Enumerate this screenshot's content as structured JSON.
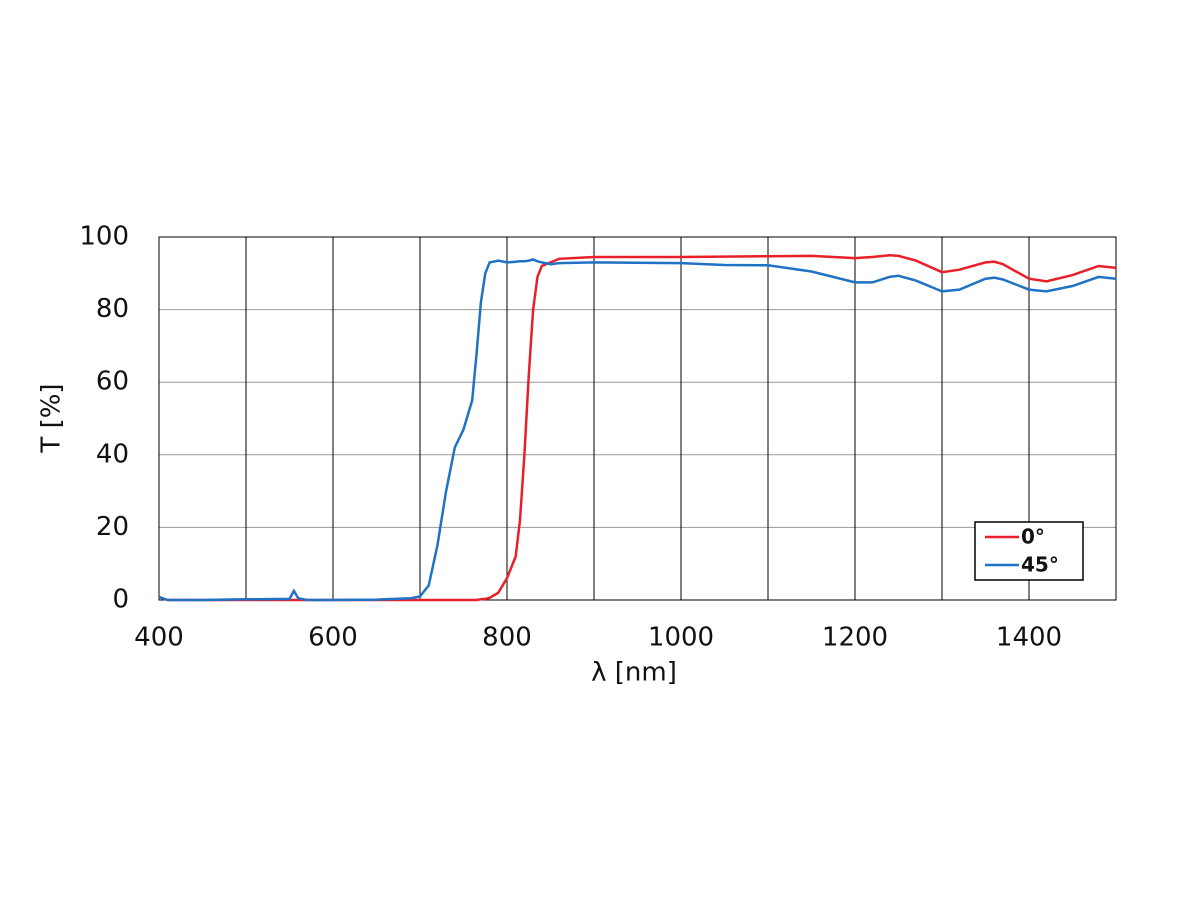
{
  "chart_data": {
    "type": "line",
    "xlabel": "λ [nm]",
    "ylabel": "T [%]",
    "x": [
      400,
      410,
      450,
      500,
      550,
      555,
      560,
      570,
      600,
      650,
      690,
      700,
      710,
      720,
      730,
      740,
      750,
      760,
      765,
      770,
      775,
      780,
      790,
      800,
      810,
      815,
      820,
      825,
      830,
      835,
      840,
      850,
      860,
      900,
      1000,
      1050,
      1100,
      1150,
      1200,
      1220,
      1240,
      1250,
      1270,
      1300,
      1320,
      1350,
      1360,
      1370,
      1400,
      1420,
      1450,
      1480,
      1500
    ],
    "series": [
      {
        "name": "0°",
        "color": "#e8202a",
        "values": [
          0.8,
          0,
          0,
          0,
          0,
          0,
          0,
          0,
          0,
          0,
          0,
          0,
          0,
          0,
          0,
          0,
          0,
          0,
          0,
          0.2,
          0.3,
          0.6,
          2,
          6,
          12,
          22,
          40,
          62,
          80,
          89,
          92,
          93,
          94,
          94.5,
          94.5,
          94.6,
          94.7,
          94.8,
          94.2,
          94.5,
          95,
          94.8,
          93.5,
          90.3,
          91,
          93,
          93.2,
          92.5,
          88.5,
          87.8,
          89.5,
          92,
          91.5
        ]
      },
      {
        "name": "45°",
        "color": "#1f72c4",
        "values": [
          0.8,
          0,
          0,
          0.2,
          0.3,
          2.5,
          0.5,
          0,
          0,
          0.1,
          0.5,
          1,
          4,
          15,
          30,
          42,
          47,
          55,
          68,
          82,
          90,
          93,
          93.5,
          93,
          93.2,
          93.3,
          93.3,
          93.5,
          93.8,
          93.3,
          93,
          92.5,
          92.8,
          93,
          92.8,
          92.3,
          92.2,
          90.5,
          87.5,
          87.5,
          89,
          89.3,
          88,
          85,
          85.5,
          88.5,
          88.8,
          88.3,
          85.5,
          85,
          86.5,
          89,
          88.5
        ]
      }
    ],
    "xlim": [
      400,
      1500
    ],
    "ylim": [
      0,
      100
    ],
    "xticks": [
      400,
      600,
      800,
      1000,
      1200,
      1400
    ],
    "xminor": [
      500,
      700,
      900,
      1100,
      1300,
      1500
    ],
    "yticks": [
      0,
      20,
      40,
      60,
      80,
      100
    ],
    "grid": true,
    "legend": "lower right"
  }
}
